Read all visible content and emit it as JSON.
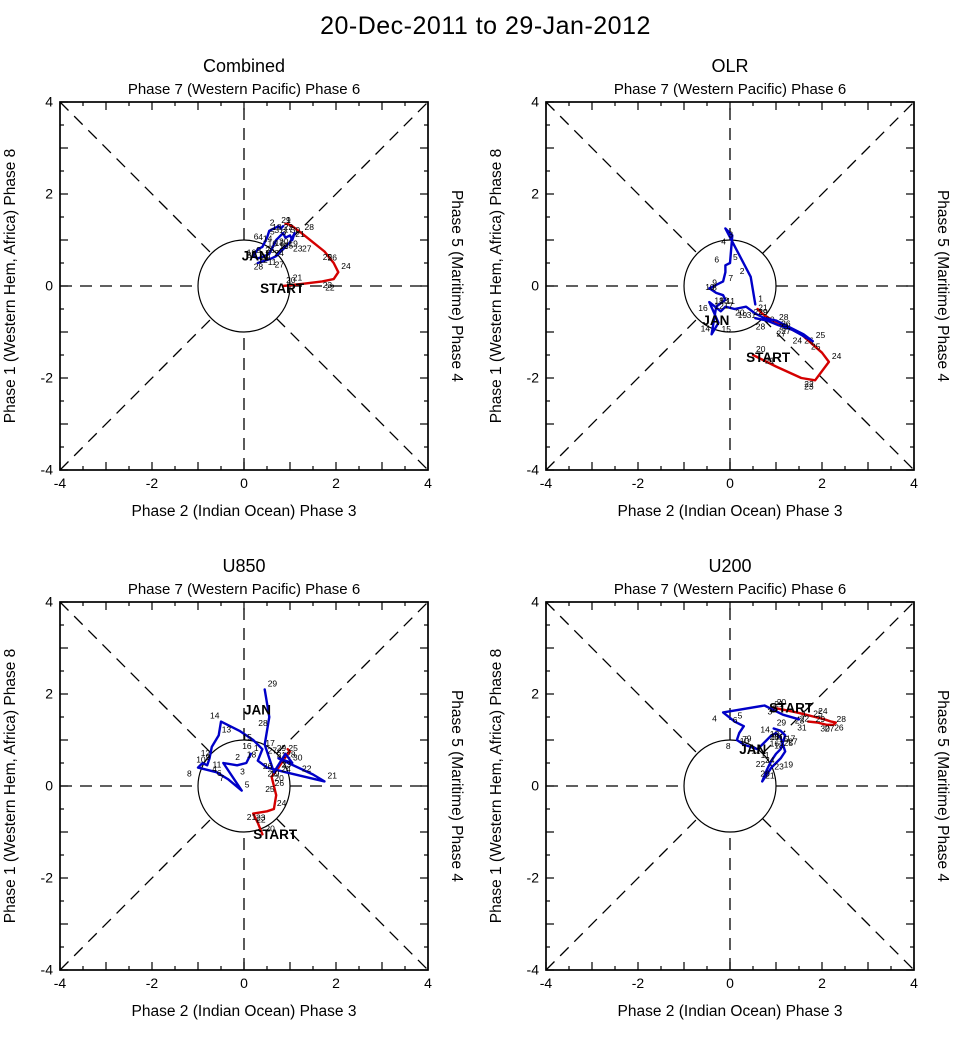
{
  "page_title": "20-Dec-2011 to 29-Jan-2012",
  "axis": {
    "top_label": "Phase 7 (Western Pacific) Phase 6",
    "bottom_label": "Phase 2 (Indian Ocean) Phase 3",
    "left_label": "Phase 1 (Western Hem, Africa) Phase 8",
    "right_label": "Phase 5 (Maritime) Phase 4",
    "range": [
      -4,
      4
    ],
    "tick_labels": [
      "-4",
      "-2",
      "0",
      "2",
      "4"
    ]
  },
  "colors": {
    "dec": "#d40000",
    "jan": "#0000c8"
  },
  "chart_data": [
    {
      "type": "line",
      "title": "Combined",
      "xlim": [
        -4,
        4
      ],
      "ylim": [
        -4,
        4
      ],
      "series": [
        {
          "name": "Dec 2011",
          "color": "#d40000",
          "days": [
            20,
            21,
            22,
            23,
            24,
            25,
            26,
            27,
            28,
            29,
            30,
            31
          ],
          "points": [
            [
              0.85,
              0.0
            ],
            [
              1.3,
              0.05
            ],
            [
              1.7,
              0.1
            ],
            [
              1.95,
              0.15
            ],
            [
              2.05,
              0.3
            ],
            [
              1.95,
              0.5
            ],
            [
              1.75,
              0.75
            ],
            [
              1.5,
              0.95
            ],
            [
              1.25,
              1.15
            ],
            [
              1.05,
              1.3
            ],
            [
              0.95,
              1.35
            ],
            [
              0.9,
              1.35
            ]
          ]
        },
        {
          "name": "Jan 2012",
          "color": "#0000c8",
          "days": [
            1,
            2,
            3,
            4,
            5,
            6,
            7,
            8,
            9,
            10,
            11,
            12,
            13,
            14,
            15,
            16,
            17,
            18,
            19,
            20,
            21,
            22,
            23,
            24,
            25,
            26,
            27,
            28,
            29
          ],
          "points": [
            [
              0.85,
              1.3
            ],
            [
              0.8,
              1.25
            ],
            [
              0.75,
              1.3
            ],
            [
              0.55,
              1.2
            ],
            [
              0.5,
              1.05
            ],
            [
              0.45,
              0.95
            ],
            [
              0.4,
              0.85
            ],
            [
              0.3,
              0.8
            ],
            [
              0.2,
              0.65
            ],
            [
              0.3,
              0.6
            ],
            [
              0.45,
              0.65
            ],
            [
              0.55,
              0.7
            ],
            [
              0.6,
              0.8
            ],
            [
              0.65,
              0.9
            ],
            [
              0.7,
              1.0
            ],
            [
              0.75,
              1.05
            ],
            [
              0.8,
              1.1
            ],
            [
              0.85,
              1.15
            ],
            [
              0.9,
              1.05
            ],
            [
              1.0,
              1.1
            ],
            [
              1.05,
              1.0
            ],
            [
              1.1,
              1.15
            ],
            [
              1.0,
              0.95
            ],
            [
              0.9,
              0.85
            ],
            [
              0.8,
              0.75
            ],
            [
              0.7,
              0.65
            ],
            [
              0.6,
              0.6
            ],
            [
              0.45,
              0.55
            ],
            [
              0.3,
              0.5
            ]
          ]
        }
      ],
      "annotations": [
        {
          "text": "START",
          "x": 0.35,
          "y": -0.15,
          "color": "#000000"
        },
        {
          "text": "JAN",
          "x": -0.05,
          "y": 0.55,
          "color": "#0000c8"
        }
      ]
    },
    {
      "type": "line",
      "title": "OLR",
      "xlim": [
        -4,
        4
      ],
      "ylim": [
        -4,
        4
      ],
      "series": [
        {
          "name": "Dec 2011",
          "color": "#d40000",
          "days": [
            20,
            21,
            22,
            23,
            24,
            25,
            26,
            27,
            28,
            29,
            30,
            31
          ],
          "points": [
            [
              0.5,
              -1.5
            ],
            [
              1.0,
              -1.75
            ],
            [
              1.55,
              -2.0
            ],
            [
              1.85,
              -2.05
            ],
            [
              2.15,
              -1.65
            ],
            [
              2.0,
              -1.45
            ],
            [
              1.55,
              -1.05
            ],
            [
              1.25,
              -0.9
            ],
            [
              1.0,
              -0.8
            ],
            [
              0.85,
              -0.7
            ],
            [
              0.7,
              -0.6
            ],
            [
              0.6,
              -0.5
            ]
          ]
        },
        {
          "name": "Jan 2012",
          "color": "#0000c8",
          "days": [
            1,
            2,
            3,
            4,
            5,
            6,
            7,
            8,
            9,
            10,
            11,
            12,
            13,
            14,
            15,
            16,
            17,
            18,
            19,
            20,
            21,
            22,
            23,
            24,
            25,
            26,
            27,
            28,
            29
          ],
          "points": [
            [
              0.55,
              -0.4
            ],
            [
              0.45,
              0.2
            ],
            [
              -0.1,
              1.25
            ],
            [
              0.05,
              1.1
            ],
            [
              0.0,
              0.5
            ],
            [
              -0.1,
              0.45
            ],
            [
              -0.1,
              0.3
            ],
            [
              -0.15,
              0.1
            ],
            [
              -0.45,
              -0.05
            ],
            [
              -0.3,
              -0.15
            ],
            [
              -0.15,
              -0.2
            ],
            [
              -0.1,
              -0.3
            ],
            [
              -0.3,
              -0.45
            ],
            [
              -0.4,
              -1.05
            ],
            [
              -0.25,
              -0.8
            ],
            [
              -0.45,
              -0.35
            ],
            [
              -0.2,
              -0.55
            ],
            [
              -0.1,
              -0.45
            ],
            [
              0.1,
              -0.5
            ],
            [
              0.35,
              -0.45
            ],
            [
              0.55,
              -0.6
            ],
            [
              0.75,
              -0.7
            ],
            [
              1.0,
              -0.75
            ],
            [
              1.6,
              -1.05
            ],
            [
              1.8,
              -1.2
            ],
            [
              1.35,
              -0.95
            ],
            [
              1.05,
              -0.85
            ],
            [
              0.8,
              -0.75
            ],
            [
              0.55,
              -0.7
            ]
          ]
        }
      ],
      "annotations": [
        {
          "text": "START",
          "x": 0.35,
          "y": -1.65,
          "color": "#000000"
        },
        {
          "text": "JAN",
          "x": -0.6,
          "y": -0.85,
          "color": "#0000c8"
        }
      ]
    },
    {
      "type": "line",
      "title": "U850",
      "xlim": [
        -4,
        4
      ],
      "ylim": [
        -4,
        4
      ],
      "series": [
        {
          "name": "Dec 2011",
          "color": "#d40000",
          "days": [
            20,
            21,
            22,
            23,
            24,
            25,
            26,
            27,
            28,
            29,
            30,
            31
          ],
          "points": [
            [
              0.4,
              -1.05
            ],
            [
              0.3,
              -0.8
            ],
            [
              0.2,
              -0.6
            ],
            [
              0.5,
              -0.55
            ],
            [
              0.65,
              -0.5
            ],
            [
              0.7,
              -0.2
            ],
            [
              0.6,
              0.2
            ],
            [
              0.75,
              0.4
            ],
            [
              0.85,
              0.55
            ],
            [
              0.95,
              0.7
            ],
            [
              1.0,
              0.75
            ],
            [
              0.95,
              0.8
            ]
          ]
        },
        {
          "name": "Jan 2012",
          "color": "#0000c8",
          "days": [
            1,
            2,
            3,
            4,
            5,
            6,
            7,
            8,
            9,
            10,
            11,
            12,
            13,
            14,
            15,
            16,
            17,
            18,
            19,
            20,
            21,
            22,
            23,
            24,
            25,
            26,
            27,
            28,
            29
          ],
          "points": [
            [
              0.15,
              0.7
            ],
            [
              0.05,
              0.5
            ],
            [
              -0.15,
              0.45
            ],
            [
              -0.45,
              0.5
            ],
            [
              -0.05,
              -0.1
            ],
            [
              -0.35,
              0.15
            ],
            [
              -0.6,
              0.3
            ],
            [
              -1.0,
              0.4
            ],
            [
              -0.9,
              0.5
            ],
            [
              -0.8,
              0.45
            ],
            [
              -0.75,
              0.6
            ],
            [
              -0.7,
              0.85
            ],
            [
              -0.55,
              1.1
            ],
            [
              -0.5,
              1.4
            ],
            [
              -0.1,
              1.2
            ],
            [
              0.2,
              1.0
            ],
            [
              0.4,
              0.8
            ],
            [
              0.3,
              0.55
            ],
            [
              0.5,
              0.4
            ],
            [
              0.9,
              0.3
            ],
            [
              1.75,
              0.1
            ],
            [
              1.5,
              0.25
            ],
            [
              0.75,
              0.6
            ],
            [
              1.05,
              0.5
            ],
            [
              0.9,
              0.7
            ],
            [
              0.65,
              0.3
            ],
            [
              0.45,
              0.9
            ],
            [
              0.55,
              1.5
            ],
            [
              0.45,
              2.1
            ]
          ]
        }
      ],
      "annotations": [
        {
          "text": "START",
          "x": 0.2,
          "y": -1.15,
          "color": "#000000"
        },
        {
          "text": "JAN",
          "x": 0.0,
          "y": 1.55,
          "color": "#0000c8"
        }
      ]
    },
    {
      "type": "line",
      "title": "U200",
      "xlim": [
        -4,
        4
      ],
      "ylim": [
        -4,
        4
      ],
      "series": [
        {
          "name": "Dec 2011",
          "color": "#d40000",
          "days": [
            20,
            21,
            22,
            23,
            24,
            25,
            26,
            27,
            28,
            29,
            30,
            31
          ],
          "points": [
            [
              0.95,
              1.7
            ],
            [
              1.2,
              1.65
            ],
            [
              1.45,
              1.6
            ],
            [
              1.65,
              1.55
            ],
            [
              1.85,
              1.5
            ],
            [
              2.05,
              1.45
            ],
            [
              2.2,
              1.4
            ],
            [
              2.3,
              1.38
            ],
            [
              2.25,
              1.33
            ],
            [
              2.1,
              1.33
            ],
            [
              1.9,
              1.38
            ],
            [
              1.7,
              1.4
            ]
          ]
        },
        {
          "name": "Jan 2012",
          "color": "#0000c8",
          "days": [
            1,
            2,
            3,
            4,
            5,
            6,
            7,
            8,
            9,
            10,
            11,
            12,
            13,
            14,
            15,
            16,
            17,
            18,
            19,
            20,
            21,
            22,
            23,
            24,
            25,
            26,
            27,
            28,
            29
          ],
          "points": [
            [
              1.5,
              1.45
            ],
            [
              1.15,
              1.55
            ],
            [
              0.75,
              1.75
            ],
            [
              -0.15,
              1.6
            ],
            [
              0.1,
              1.4
            ],
            [
              0.3,
              1.3
            ],
            [
              0.2,
              1.15
            ],
            [
              0.15,
              1.0
            ],
            [
              0.3,
              0.9
            ],
            [
              0.45,
              0.85
            ],
            [
              0.6,
              0.8
            ],
            [
              0.7,
              0.9
            ],
            [
              0.8,
              1.0
            ],
            [
              0.9,
              1.1
            ],
            [
              1.0,
              1.15
            ],
            [
              1.1,
              1.05
            ],
            [
              1.15,
              0.9
            ],
            [
              1.2,
              0.75
            ],
            [
              1.1,
              0.6
            ],
            [
              0.9,
              0.4
            ],
            [
              0.7,
              0.1
            ],
            [
              0.8,
              0.35
            ],
            [
              0.9,
              0.55
            ],
            [
              1.0,
              0.7
            ],
            [
              1.1,
              0.8
            ],
            [
              1.15,
              0.95
            ],
            [
              1.2,
              1.1
            ],
            [
              1.1,
              1.2
            ],
            [
              0.95,
              1.25
            ]
          ]
        }
      ],
      "annotations": [
        {
          "text": "START",
          "x": 0.85,
          "y": 1.6,
          "color": "#000000"
        },
        {
          "text": "JAN",
          "x": 0.2,
          "y": 0.7,
          "color": "#0000c8"
        }
      ]
    }
  ]
}
